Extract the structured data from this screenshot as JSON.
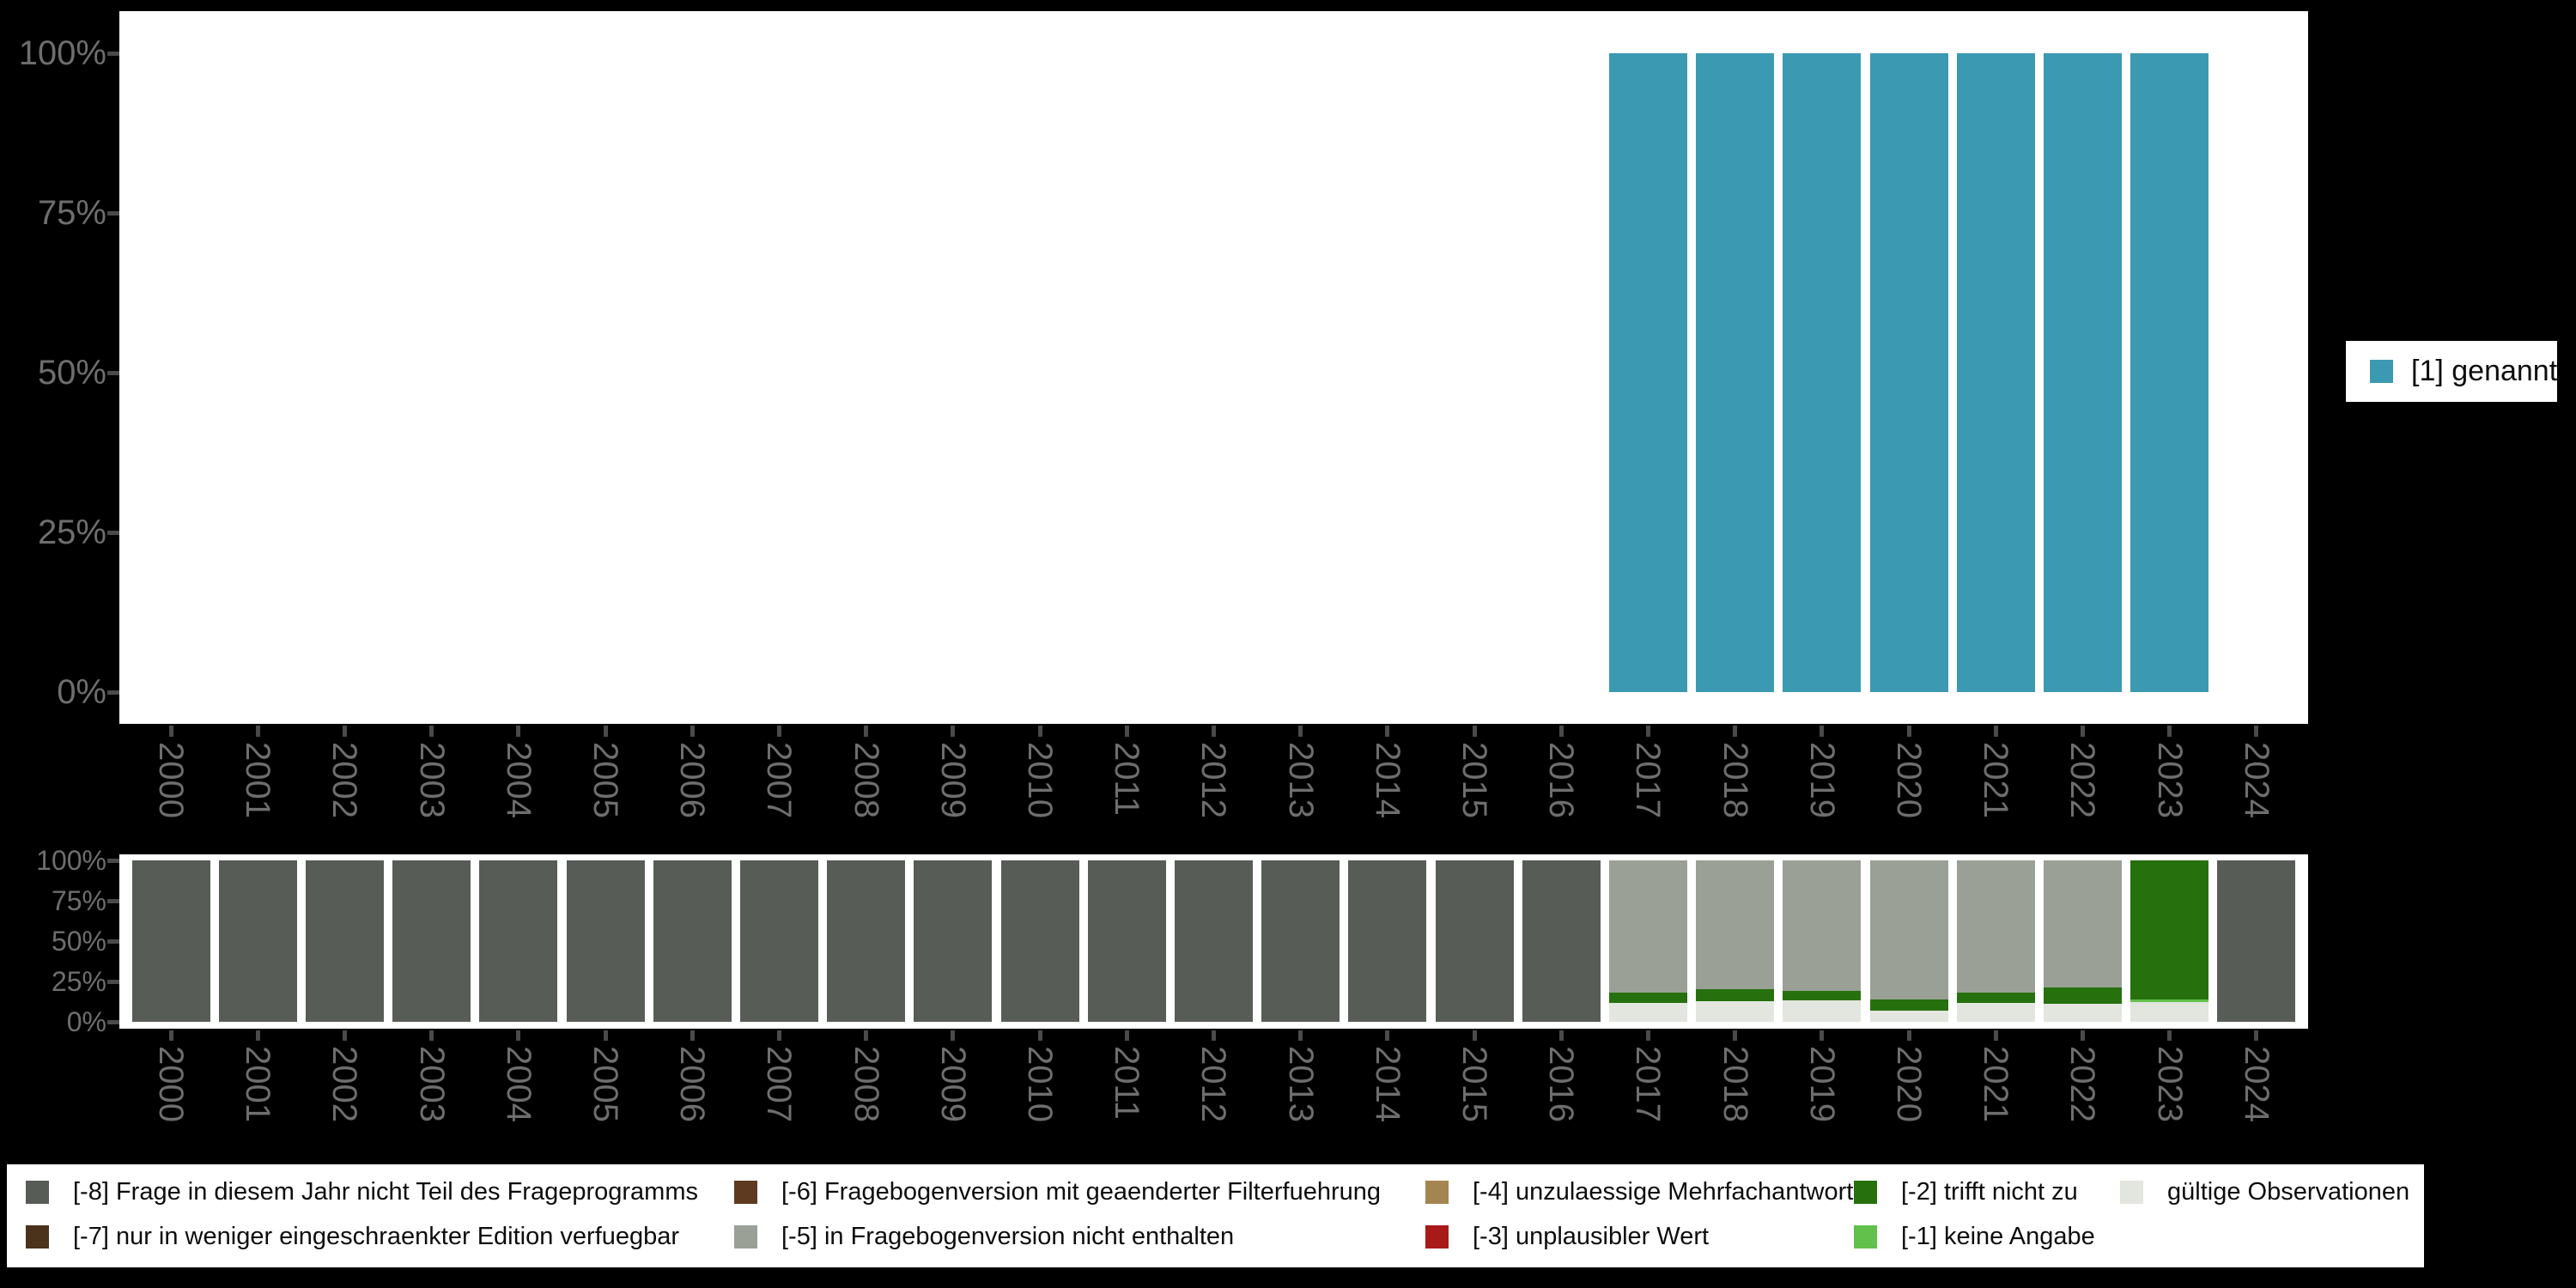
{
  "colors": {
    "genannt": "#3B9AB2",
    "-8": "#575D56",
    "-7": "#4A321B",
    "-6": "#5E3A21",
    "-5": "#9AA096",
    "-4": "#A5854F",
    "-3": "#A81A17",
    "-2": "#26700D",
    "-1": "#62C14B",
    "valid": "#E2E6DF"
  },
  "right_legend": {
    "label": "[1] genannt",
    "key": "genannt"
  },
  "bottom_legend": {
    "items": [
      {
        "key": "-8",
        "label": "[-8] Frage in diesem Jahr nicht Teil des Frageprogramms"
      },
      {
        "key": "-7",
        "label": "[-7] nur in weniger eingeschraenkter Edition verfuegbar"
      },
      {
        "key": "-6",
        "label": "[-6] Fragebogenversion mit geaenderter Filterfuehrung"
      },
      {
        "key": "-5",
        "label": "[-5] in Fragebogenversion nicht enthalten"
      },
      {
        "key": "-4",
        "label": "[-4] unzulaessige Mehrfachantwort"
      },
      {
        "key": "-3",
        "label": "[-3] unplausibler Wert"
      },
      {
        "key": "-2",
        "label": "[-2] trifft nicht zu"
      },
      {
        "key": "-1",
        "label": "[-1] keine Angabe"
      },
      {
        "key": "valid",
        "label": "gültige Observationen"
      }
    ]
  },
  "chart_data": [
    {
      "type": "bar",
      "title": "",
      "xlabel": "",
      "ylabel": "",
      "ylim": [
        0,
        100
      ],
      "grid": false,
      "legend_position": "right",
      "yticks": [
        "100%",
        "75%",
        "50%",
        "25%",
        "0%"
      ],
      "categories": [
        "2000",
        "2001",
        "2002",
        "2003",
        "2004",
        "2005",
        "2006",
        "2007",
        "2008",
        "2009",
        "2010",
        "2011",
        "2012",
        "2013",
        "2014",
        "2015",
        "2016",
        "2017",
        "2018",
        "2019",
        "2020",
        "2021",
        "2022",
        "2023",
        "2024"
      ],
      "series": [
        {
          "name": "[1] genannt",
          "key": "genannt",
          "values": [
            null,
            null,
            null,
            null,
            null,
            null,
            null,
            null,
            null,
            null,
            null,
            null,
            null,
            null,
            null,
            null,
            null,
            100,
            100,
            100,
            100,
            100,
            100,
            100,
            null
          ]
        }
      ]
    },
    {
      "type": "bar-stacked",
      "title": "",
      "xlabel": "",
      "ylabel": "",
      "ylim": [
        0,
        100
      ],
      "grid": false,
      "legend_position": "bottom",
      "yticks": [
        "100%",
        "75%",
        "50%",
        "25%",
        "0%"
      ],
      "categories": [
        "2000",
        "2001",
        "2002",
        "2003",
        "2004",
        "2005",
        "2006",
        "2007",
        "2008",
        "2009",
        "2010",
        "2011",
        "2012",
        "2013",
        "2014",
        "2015",
        "2016",
        "2017",
        "2018",
        "2019",
        "2020",
        "2021",
        "2022",
        "2023",
        "2024"
      ],
      "bars": [
        {
          "year": "2000",
          "segments": [
            {
              "key": "-8",
              "value": 100
            }
          ]
        },
        {
          "year": "2001",
          "segments": [
            {
              "key": "-8",
              "value": 100
            }
          ]
        },
        {
          "year": "2002",
          "segments": [
            {
              "key": "-8",
              "value": 100
            }
          ]
        },
        {
          "year": "2003",
          "segments": [
            {
              "key": "-8",
              "value": 100
            }
          ]
        },
        {
          "year": "2004",
          "segments": [
            {
              "key": "-8",
              "value": 100
            }
          ]
        },
        {
          "year": "2005",
          "segments": [
            {
              "key": "-8",
              "value": 100
            }
          ]
        },
        {
          "year": "2006",
          "segments": [
            {
              "key": "-8",
              "value": 100
            }
          ]
        },
        {
          "year": "2007",
          "segments": [
            {
              "key": "-8",
              "value": 100
            }
          ]
        },
        {
          "year": "2008",
          "segments": [
            {
              "key": "-8",
              "value": 100
            }
          ]
        },
        {
          "year": "2009",
          "segments": [
            {
              "key": "-8",
              "value": 100
            }
          ]
        },
        {
          "year": "2010",
          "segments": [
            {
              "key": "-8",
              "value": 100
            }
          ]
        },
        {
          "year": "2011",
          "segments": [
            {
              "key": "-8",
              "value": 100
            }
          ]
        },
        {
          "year": "2012",
          "segments": [
            {
              "key": "-8",
              "value": 100
            }
          ]
        },
        {
          "year": "2013",
          "segments": [
            {
              "key": "-8",
              "value": 100
            }
          ]
        },
        {
          "year": "2014",
          "segments": [
            {
              "key": "-8",
              "value": 100
            }
          ]
        },
        {
          "year": "2015",
          "segments": [
            {
              "key": "-8",
              "value": 100
            }
          ]
        },
        {
          "year": "2016",
          "segments": [
            {
              "key": "-8",
              "value": 100
            }
          ]
        },
        {
          "year": "2017",
          "segments": [
            {
              "key": "-5",
              "value": 81.9
            },
            {
              "key": "-2",
              "value": 6.6
            },
            {
              "key": "valid",
              "value": 11.5
            }
          ]
        },
        {
          "year": "2018",
          "segments": [
            {
              "key": "-5",
              "value": 79.8
            },
            {
              "key": "-2",
              "value": 7.4
            },
            {
              "key": "valid",
              "value": 12.8
            }
          ]
        },
        {
          "year": "2019",
          "segments": [
            {
              "key": "-5",
              "value": 80.6
            },
            {
              "key": "-2",
              "value": 6.2
            },
            {
              "key": "valid",
              "value": 13.2
            }
          ]
        },
        {
          "year": "2020",
          "segments": [
            {
              "key": "-5",
              "value": 86.0
            },
            {
              "key": "-2",
              "value": 7.3
            },
            {
              "key": "valid",
              "value": 6.7
            }
          ]
        },
        {
          "year": "2021",
          "segments": [
            {
              "key": "-5",
              "value": 82.1
            },
            {
              "key": "-2",
              "value": 6.0
            },
            {
              "key": "valid",
              "value": 11.9
            }
          ]
        },
        {
          "year": "2022",
          "segments": [
            {
              "key": "-5",
              "value": 78.9
            },
            {
              "key": "-2",
              "value": 10.1
            },
            {
              "key": "valid",
              "value": 11.0
            }
          ]
        },
        {
          "year": "2023",
          "segments": [
            {
              "key": "-2",
              "value": 86.2
            },
            {
              "key": "-1",
              "value": 1.4
            },
            {
              "key": "valid",
              "value": 12.4
            }
          ]
        },
        {
          "year": "2024",
          "segments": [
            {
              "key": "-8",
              "value": 100
            }
          ]
        }
      ]
    }
  ]
}
